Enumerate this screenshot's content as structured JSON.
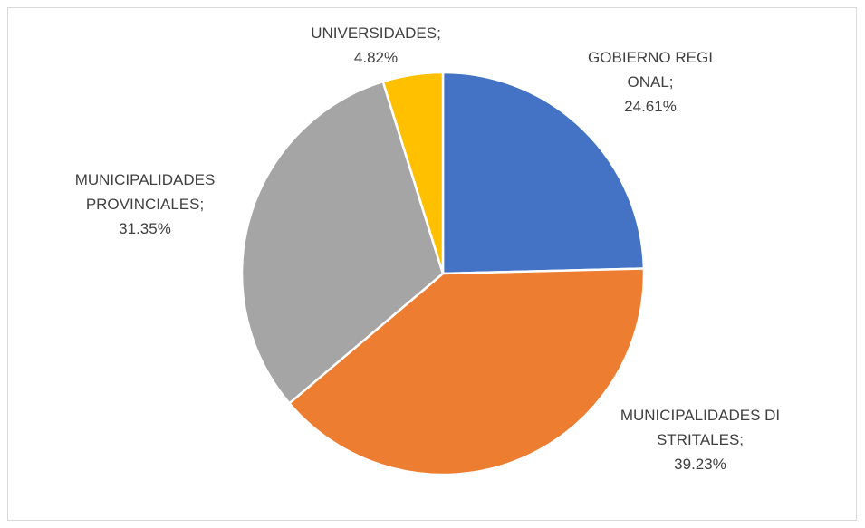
{
  "chart_data": {
    "type": "pie",
    "categories": [
      "GOBIERNO REGIONAL;",
      "MUNICIPALIDADES DISTRITALES;",
      "MUNICIPALIDADES PROVINCIALES;",
      "UNIVERSIDADES;"
    ],
    "values": [
      24.61,
      39.23,
      31.35,
      4.82
    ],
    "value_labels": [
      "24.61%",
      "39.23%",
      "31.35%",
      "4.82%"
    ],
    "colors": [
      "#4472c4",
      "#ed7d31",
      "#a5a5a5",
      "#ffc000"
    ]
  }
}
